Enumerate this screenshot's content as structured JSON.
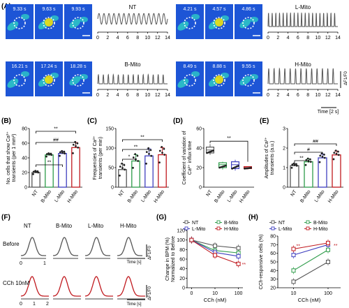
{
  "panels": {
    "A": {
      "label": "(A)",
      "groups": [
        {
          "name": "NT",
          "times": [
            "9.33 s",
            "9.63 s",
            "9.93 s"
          ]
        },
        {
          "name": "L-Mito",
          "times": [
            "4.21 s",
            "4.57 s",
            "4.86 s"
          ]
        },
        {
          "name": "B-Mito",
          "times": [
            "16.21 s",
            "17.24 s",
            "18.28 s"
          ]
        },
        {
          "name": "H-Mito",
          "times": [
            "8.49 s",
            "8.88 s",
            "9.55 s"
          ]
        }
      ],
      "trace_ticks": [
        "0",
        "2",
        "4",
        "6",
        "8",
        "10",
        "12",
        "14"
      ],
      "scale_y": "ΔF1/F0",
      "scale_x": "Time [2 s]",
      "colors": {
        "image_bg": "#1d55d6",
        "cell": "#2fd1c4",
        "hot": "#f0e010",
        "trace": "#555555"
      }
    },
    "B": {
      "label": "(B)"
    },
    "C": {
      "label": "(C)"
    },
    "D": {
      "label": "(D)"
    },
    "E": {
      "label": "(E)"
    },
    "F": {
      "label": "(F)",
      "groups": [
        "NT",
        "B-Mito",
        "L-Mito",
        "H-Mito"
      ],
      "row_labels": [
        "Before",
        "CCh 10nM"
      ],
      "before_ticks": [
        "0",
        "1"
      ],
      "after_ticks": [
        "0",
        "1",
        "2"
      ],
      "scale_y": "ΔF1/F0",
      "scale_x": "Time [s]",
      "colors": {
        "before": "#555555",
        "after": "#c0191e"
      }
    },
    "G": {
      "label": "(G)"
    },
    "H": {
      "label": "(H)"
    }
  },
  "chart_data": [
    {
      "id": "B",
      "type": "bar",
      "ylabel": "No. cells that show Ca²⁺ transients (per 1 mm²)",
      "categories": [
        "NT",
        "B-Mito",
        "L-Mito",
        "H-Mito"
      ],
      "values": [
        20,
        44,
        46,
        54
      ],
      "errors": [
        2,
        2,
        3,
        7
      ],
      "ylim": [
        0,
        80
      ],
      "yticks": [
        "0",
        "20",
        "40",
        "60",
        "80"
      ],
      "colors": [
        "#555555",
        "#2e9c4a",
        "#3f3fbf",
        "#c0191e"
      ],
      "significance": [
        "**",
        "##",
        "**"
      ]
    },
    {
      "id": "C",
      "type": "bar",
      "ylabel": "Frequencies of Ca²⁺ transients (per min)",
      "categories": [
        "NT",
        "B-Mito",
        "L-Mito",
        "H-Mito"
      ],
      "values": [
        45,
        67,
        80,
        83
      ],
      "errors": [
        14,
        16,
        18,
        18
      ],
      "ylim": [
        0,
        150
      ],
      "yticks": [
        "0",
        "50",
        "100",
        "150"
      ],
      "colors": [
        "#555555",
        "#2e9c4a",
        "#3f3fbf",
        "#c0191e"
      ],
      "significance": [
        "*",
        "**",
        "**"
      ]
    },
    {
      "id": "D",
      "type": "box",
      "ylabel": "Coefficient of variation of Ca²⁺ influx time",
      "categories": [
        "NT",
        "B-Mito",
        "L-Mito",
        "H-Mito"
      ],
      "medians": [
        38,
        23,
        23,
        20
      ],
      "q1": [
        35,
        20,
        19,
        19
      ],
      "q3": [
        41,
        25,
        26,
        21
      ],
      "min": [
        33,
        18,
        17,
        18
      ],
      "max": [
        44,
        26,
        28,
        21
      ],
      "ylim": [
        0,
        60
      ],
      "yticks": [
        "0",
        "20",
        "40",
        "60"
      ],
      "colors": [
        "#555555",
        "#2e9c4a",
        "#3f3fbf",
        "#c0191e"
      ],
      "significance": [
        "**"
      ]
    },
    {
      "id": "E",
      "type": "bar",
      "ylabel": "Amplitudes of Ca²⁺ transients (a.u.)",
      "categories": [
        "NT",
        "B-Mito",
        "L-Mito",
        "H-Mito"
      ],
      "values": [
        1.1,
        1.3,
        1.5,
        1.65
      ],
      "errors": [
        0.1,
        0.15,
        0.2,
        0.2
      ],
      "ylim": [
        0,
        3
      ],
      "yticks": [
        "0",
        "1",
        "2",
        "3"
      ],
      "colors": [
        "#555555",
        "#2e9c4a",
        "#3f3fbf",
        "#c0191e"
      ],
      "significance": [
        "**",
        "#",
        "##"
      ]
    },
    {
      "id": "G",
      "type": "line",
      "ylabel": "Change in BPM (%) Normalized to Before",
      "xlabel": "CCh (nM)",
      "x": [
        "0",
        "10",
        "100"
      ],
      "ylim": [
        0,
        120
      ],
      "yticks": [
        "0",
        "20",
        "40",
        "60",
        "80",
        "100",
        "120"
      ],
      "series": [
        {
          "name": "NT",
          "color": "#555555",
          "values": [
            100,
            88,
            83
          ]
        },
        {
          "name": "B-Mito",
          "color": "#2e9c4a",
          "values": [
            100,
            78,
            73
          ]
        },
        {
          "name": "L-Mito",
          "color": "#3f3fbf",
          "values": [
            100,
            74,
            66
          ]
        },
        {
          "name": "H-Mito",
          "color": "#c0191e",
          "values": [
            100,
            68,
            50
          ]
        }
      ],
      "annotations": [
        "*",
        "**"
      ]
    },
    {
      "id": "H",
      "type": "line",
      "ylabel": "CCh-responsive cells (%)",
      "xlabel": "CCh (nM)",
      "x": [
        "10",
        "100"
      ],
      "ylim": [
        20,
        80
      ],
      "yticks": [
        "20",
        "30",
        "40",
        "50",
        "60",
        "70",
        "80"
      ],
      "series": [
        {
          "name": "NT",
          "color": "#555555",
          "values": [
            27,
            50
          ]
        },
        {
          "name": "B-Mito",
          "color": "#2e9c4a",
          "values": [
            40,
            64
          ]
        },
        {
          "name": "L-Mito",
          "color": "#3f3fbf",
          "values": [
            58,
            70
          ]
        },
        {
          "name": "H-Mito",
          "color": "#c0191e",
          "values": [
            65,
            72
          ]
        }
      ],
      "annotations": [
        "**",
        "**"
      ]
    }
  ]
}
